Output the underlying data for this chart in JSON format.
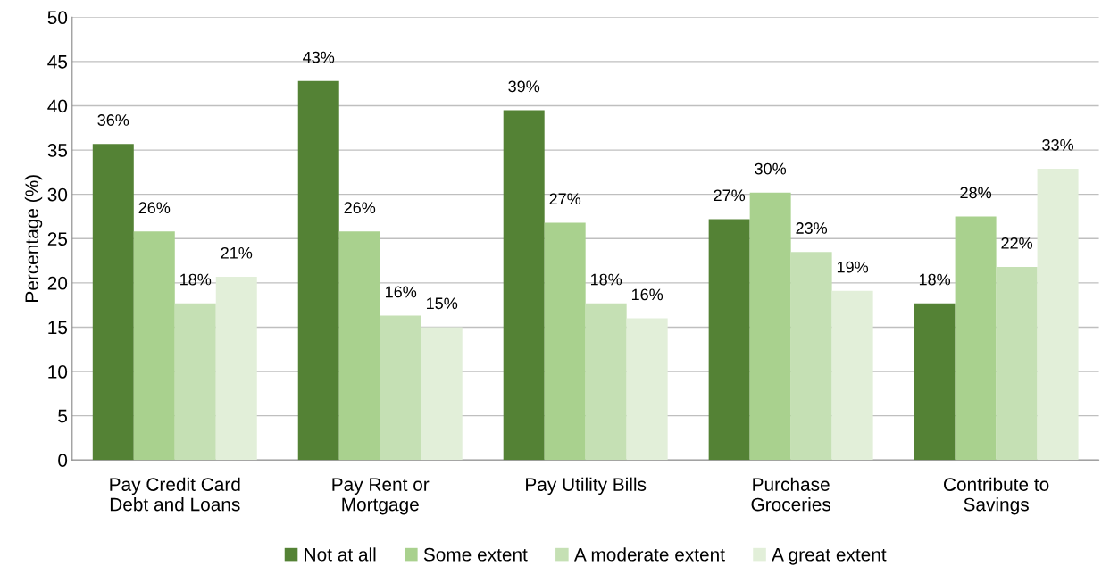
{
  "chart_data": {
    "type": "bar",
    "ylabel": "Percentage (%)",
    "categories": [
      "Pay Credit Card\nDebt and Loans",
      "Pay Rent or\nMortgage",
      "Pay Utility Bills",
      "Purchase\nGroceries",
      "Contribute to\nSavings"
    ],
    "series": [
      {
        "name": "Not at all",
        "color": "#548235",
        "values": [
          35.7,
          42.8,
          39.5,
          27.2,
          17.7
        ],
        "value_labels": [
          "36%",
          "43%",
          "39%",
          "27%",
          "18%"
        ]
      },
      {
        "name": "Some extent",
        "color": "#a9d18e",
        "values": [
          25.8,
          25.8,
          26.8,
          30.2,
          27.5
        ],
        "value_labels": [
          "26%",
          "26%",
          "27%",
          "30%",
          "28%"
        ]
      },
      {
        "name": "A moderate extent",
        "color": "#c5e0b4",
        "values": [
          17.7,
          16.3,
          17.7,
          23.5,
          21.8
        ],
        "value_labels": [
          "18%",
          "16%",
          "18%",
          "23%",
          "22%"
        ]
      },
      {
        "name": "A great extent",
        "color": "#e2efd9",
        "values": [
          20.7,
          15.0,
          16.0,
          19.1,
          32.9
        ],
        "value_labels": [
          "21%",
          "15%",
          "16%",
          "19%",
          "33%"
        ]
      }
    ],
    "ylim": [
      0,
      50
    ],
    "yticks": [
      0,
      5,
      10,
      15,
      20,
      25,
      30,
      35,
      40,
      45,
      50
    ],
    "grid": "y",
    "legend": "bottom"
  }
}
